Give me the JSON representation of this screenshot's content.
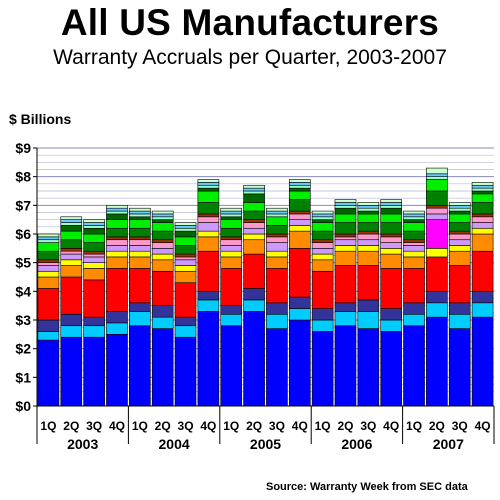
{
  "title": "All US Manufacturers",
  "subtitle": "Warranty Accruals per Quarter, 2003-2007",
  "units_label": "$ Billions",
  "source": "Source: Warranty Week from SEC data",
  "chart_data": {
    "type": "bar",
    "stacked": true,
    "title": "All US Manufacturers",
    "subtitle": "Warranty Accruals per Quarter, 2003-2007",
    "ylabel": "$ Billions",
    "ylim": [
      0,
      9
    ],
    "yticks": [
      "$0",
      "$1",
      "$2",
      "$3",
      "$4",
      "$5",
      "$6",
      "$7",
      "$8",
      "$9"
    ],
    "grid": true,
    "categories": [
      "1Q",
      "2Q",
      "3Q",
      "4Q",
      "1Q",
      "2Q",
      "3Q",
      "4Q",
      "1Q",
      "2Q",
      "3Q",
      "4Q",
      "1Q",
      "2Q",
      "3Q",
      "4Q",
      "1Q",
      "2Q",
      "3Q",
      "4Q"
    ],
    "years": [
      "2003",
      "2004",
      "2005",
      "2006",
      "2007"
    ],
    "series": [
      {
        "color": "#0000ff",
        "values": [
          2.3,
          2.4,
          2.4,
          2.5,
          2.8,
          2.7,
          2.4,
          3.3,
          2.8,
          3.3,
          2.7,
          3.0,
          2.6,
          2.8,
          2.7,
          2.6,
          2.8,
          3.1,
          2.7,
          3.1
        ]
      },
      {
        "color": "#00ccff",
        "values": [
          0.3,
          0.4,
          0.4,
          0.4,
          0.5,
          0.4,
          0.4,
          0.4,
          0.4,
          0.4,
          0.5,
          0.4,
          0.4,
          0.5,
          0.6,
          0.4,
          0.4,
          0.5,
          0.5,
          0.5
        ]
      },
      {
        "color": "#333399",
        "values": [
          0.4,
          0.4,
          0.3,
          0.4,
          0.3,
          0.4,
          0.3,
          0.3,
          0.3,
          0.4,
          0.4,
          0.4,
          0.4,
          0.3,
          0.4,
          0.4,
          0.4,
          0.4,
          0.4,
          0.4
        ]
      },
      {
        "color": "#ff0000",
        "values": [
          1.1,
          1.3,
          1.3,
          1.5,
          1.2,
          1.2,
          1.2,
          1.4,
          1.3,
          1.2,
          1.2,
          1.7,
          1.3,
          1.3,
          1.2,
          1.4,
          1.2,
          1.2,
          1.3,
          1.4
        ]
      },
      {
        "color": "#ff8c00",
        "values": [
          0.4,
          0.4,
          0.4,
          0.4,
          0.4,
          0.4,
          0.4,
          0.5,
          0.4,
          0.5,
          0.4,
          0.6,
          0.4,
          0.5,
          0.5,
          0.5,
          0.4,
          0.0,
          0.5,
          0.6
        ]
      },
      {
        "color": "#ffff00",
        "values": [
          0.2,
          0.2,
          0.2,
          0.2,
          0.2,
          0.2,
          0.2,
          0.2,
          0.2,
          0.2,
          0.2,
          0.2,
          0.2,
          0.2,
          0.2,
          0.2,
          0.2,
          0.3,
          0.2,
          0.2
        ]
      },
      {
        "color": "#ff00ff",
        "values": [
          0.0,
          0.0,
          0.0,
          0.0,
          0.0,
          0.0,
          0.0,
          0.0,
          0.0,
          0.0,
          0.0,
          0.0,
          0.0,
          0.0,
          0.0,
          0.0,
          0.0,
          1.0,
          0.0,
          0.0
        ]
      },
      {
        "color": "#cc99ff",
        "values": [
          0.2,
          0.2,
          0.2,
          0.2,
          0.2,
          0.2,
          0.2,
          0.3,
          0.2,
          0.2,
          0.3,
          0.2,
          0.2,
          0.2,
          0.2,
          0.2,
          0.2,
          0.2,
          0.2,
          0.2
        ]
      },
      {
        "color": "#ff99cc",
        "values": [
          0.1,
          0.1,
          0.1,
          0.2,
          0.2,
          0.2,
          0.1,
          0.2,
          0.2,
          0.2,
          0.2,
          0.2,
          0.2,
          0.1,
          0.2,
          0.2,
          0.1,
          0.2,
          0.2,
          0.2
        ]
      },
      {
        "color": "#993300",
        "values": [
          0.1,
          0.1,
          0.1,
          0.1,
          0.1,
          0.1,
          0.1,
          0.1,
          0.1,
          0.1,
          0.1,
          0.1,
          0.1,
          0.1,
          0.1,
          0.1,
          0.1,
          0.1,
          0.1,
          0.1
        ]
      },
      {
        "color": "#008000",
        "values": [
          0.3,
          0.3,
          0.3,
          0.3,
          0.3,
          0.3,
          0.3,
          0.4,
          0.3,
          0.3,
          0.3,
          0.4,
          0.3,
          0.4,
          0.3,
          0.4,
          0.3,
          0.5,
          0.3,
          0.4
        ]
      },
      {
        "color": "#00ee00",
        "values": [
          0.3,
          0.3,
          0.3,
          0.3,
          0.3,
          0.3,
          0.3,
          0.4,
          0.3,
          0.3,
          0.3,
          0.3,
          0.3,
          0.3,
          0.3,
          0.3,
          0.3,
          0.4,
          0.3,
          0.3
        ]
      },
      {
        "color": "#006600",
        "values": [
          0.0,
          0.2,
          0.2,
          0.2,
          0.1,
          0.1,
          0.2,
          0.1,
          0.1,
          0.3,
          0.0,
          0.1,
          0.1,
          0.2,
          0.1,
          0.2,
          0.1,
          0.0,
          0.1,
          0.1
        ]
      },
      {
        "color": "#99ffcc",
        "values": [
          0.1,
          0.1,
          0.1,
          0.1,
          0.1,
          0.1,
          0.1,
          0.1,
          0.1,
          0.1,
          0.1,
          0.1,
          0.1,
          0.1,
          0.1,
          0.1,
          0.1,
          0.1,
          0.1,
          0.1
        ]
      },
      {
        "color": "#66ccff",
        "values": [
          0.1,
          0.1,
          0.1,
          0.1,
          0.1,
          0.1,
          0.1,
          0.1,
          0.1,
          0.1,
          0.1,
          0.1,
          0.1,
          0.1,
          0.1,
          0.1,
          0.1,
          0.1,
          0.1,
          0.1
        ]
      },
      {
        "color": "#ccffcc",
        "values": [
          0.1,
          0.1,
          0.1,
          0.1,
          0.1,
          0.1,
          0.1,
          0.1,
          0.1,
          0.1,
          0.1,
          0.1,
          0.1,
          0.1,
          0.1,
          0.1,
          0.1,
          0.2,
          0.1,
          0.1
        ]
      }
    ]
  }
}
